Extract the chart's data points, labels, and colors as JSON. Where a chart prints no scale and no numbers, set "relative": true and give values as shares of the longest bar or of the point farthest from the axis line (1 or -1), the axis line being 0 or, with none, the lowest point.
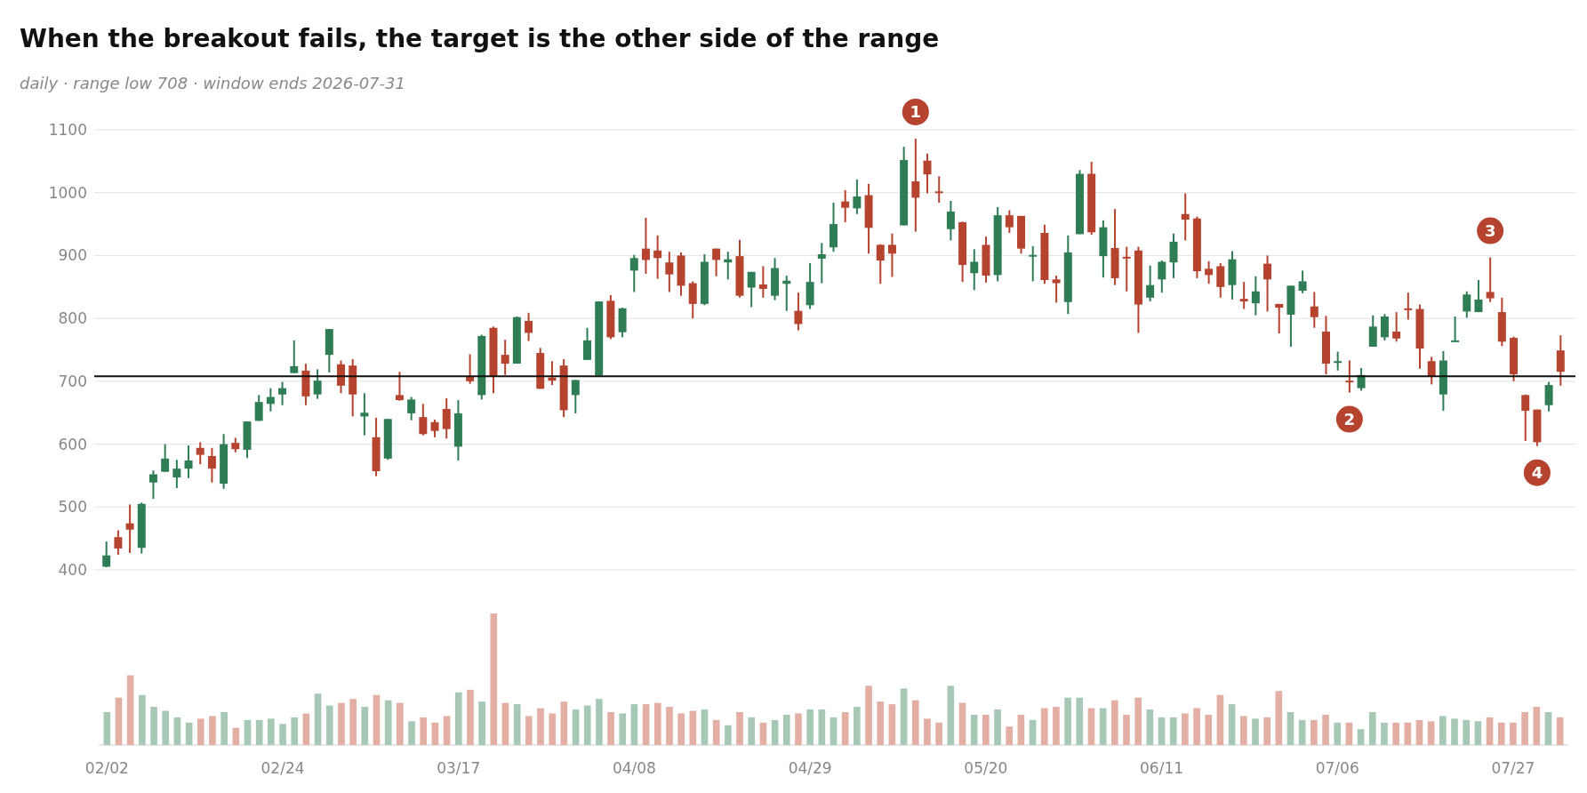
{
  "chart_data": [
    {
      "type": "candlestick",
      "title": "When the breakout fails, the target is the other side of the range",
      "subtitle": "daily · range low 708 · window ends 2026-07-31",
      "categories": [
        null,
        null,
        null,
        null,
        null,
        null,
        null,
        null,
        null,
        null,
        null,
        null,
        null,
        null,
        null,
        null,
        null,
        null,
        null,
        null,
        null,
        null,
        null,
        null,
        null,
        null,
        null,
        null,
        null,
        null,
        null,
        null,
        null,
        null,
        null,
        null,
        null,
        null,
        null,
        null,
        null,
        null,
        null,
        null,
        null,
        null,
        null,
        null,
        null,
        null,
        null,
        null,
        null,
        null,
        null,
        null,
        null,
        null,
        null,
        null,
        null,
        null,
        null,
        null,
        null,
        null,
        null,
        null,
        null,
        null,
        null,
        null,
        null,
        null,
        null,
        null,
        null,
        null,
        null,
        null,
        null,
        null,
        null,
        null,
        null,
        null,
        null,
        null,
        null,
        null,
        null,
        null,
        null,
        null,
        null,
        null,
        null,
        null,
        null,
        null,
        null,
        null,
        null,
        null,
        null,
        null,
        null,
        null,
        null,
        null,
        null,
        null,
        null,
        null,
        null,
        null,
        null,
        null,
        null,
        null,
        null,
        null,
        null,
        null,
        null
      ],
      "ohlc": [
        [
          405,
          445,
          404,
          423
        ],
        [
          452,
          463,
          424,
          434
        ],
        [
          474,
          504,
          427,
          464
        ],
        [
          435,
          507,
          426,
          505
        ],
        [
          539,
          558,
          513,
          552
        ],
        [
          556,
          600,
          556,
          577
        ],
        [
          547,
          575,
          530,
          561
        ],
        [
          561,
          598,
          546,
          574
        ],
        [
          594,
          603,
          568,
          583
        ],
        [
          581,
          594,
          539,
          561
        ],
        [
          537,
          616,
          529,
          600
        ],
        [
          602,
          610,
          587,
          592
        ],
        [
          591,
          636,
          578,
          636
        ],
        [
          637,
          678,
          637,
          667
        ],
        [
          664,
          689,
          652,
          675
        ],
        [
          679,
          699,
          662,
          689
        ],
        [
          713,
          765,
          713,
          724
        ],
        [
          717,
          728,
          662,
          676
        ],
        [
          679,
          719,
          672,
          701
        ],
        [
          742,
          783,
          714,
          783
        ],
        [
          727,
          733,
          681,
          693
        ],
        [
          725,
          735,
          644,
          679
        ],
        [
          644,
          681,
          614,
          650
        ],
        [
          611,
          642,
          549,
          557
        ],
        [
          577,
          640,
          575,
          640
        ],
        [
          678,
          715,
          669,
          670
        ],
        [
          649,
          675,
          638,
          671
        ],
        [
          643,
          664,
          614,
          616
        ],
        [
          635,
          639,
          611,
          621
        ],
        [
          656,
          673,
          609,
          624
        ],
        [
          596,
          670,
          574,
          649
        ],
        [
          707,
          743,
          696,
          700
        ],
        [
          678,
          774,
          671,
          772
        ],
        [
          785,
          787,
          681,
          707
        ],
        [
          742,
          766,
          710,
          728
        ],
        [
          728,
          803,
          728,
          802
        ],
        [
          796,
          809,
          764,
          777
        ],
        [
          745,
          753,
          688,
          688
        ],
        [
          706,
          732,
          694,
          701
        ],
        [
          725,
          735,
          643,
          654
        ],
        [
          678,
          702,
          649,
          702
        ],
        [
          734,
          785,
          734,
          765
        ],
        [
          709,
          827,
          709,
          827
        ],
        [
          828,
          837,
          767,
          770
        ],
        [
          778,
          817,
          770,
          816
        ],
        [
          876,
          901,
          842,
          896
        ],
        [
          911,
          960,
          871,
          893
        ],
        [
          908,
          932,
          863,
          896
        ],
        [
          889,
          906,
          842,
          870
        ],
        [
          900,
          905,
          836,
          852
        ],
        [
          856,
          859,
          800,
          823
        ],
        [
          823,
          902,
          821,
          890
        ],
        [
          911,
          911,
          867,
          893
        ],
        [
          889,
          906,
          862,
          894
        ],
        [
          899,
          925,
          833,
          836
        ],
        [
          849,
          874,
          818,
          874
        ],
        [
          854,
          883,
          833,
          847
        ],
        [
          836,
          896,
          829,
          880
        ],
        [
          855,
          868,
          812,
          860
        ],
        [
          812,
          841,
          781,
          791
        ],
        [
          821,
          888,
          815,
          858
        ],
        [
          895,
          920,
          856,
          902
        ],
        [
          913,
          984,
          906,
          950
        ],
        [
          986,
          1004,
          953,
          976
        ],
        [
          975,
          1021,
          966,
          994
        ],
        [
          996,
          1014,
          903,
          944
        ],
        [
          917,
          918,
          855,
          892
        ],
        [
          917,
          935,
          866,
          903
        ],
        [
          948,
          1073,
          948,
          1052
        ],
        [
          1018,
          1086,
          938,
          992
        ],
        [
          1051,
          1062,
          999,
          1029
        ],
        [
          1002,
          1026,
          984,
          1001
        ],
        [
          942,
          987,
          924,
          970
        ],
        [
          953,
          954,
          858,
          885
        ],
        [
          872,
          910,
          845,
          890
        ],
        [
          917,
          930,
          857,
          868
        ],
        [
          869,
          977,
          859,
          964
        ],
        [
          964,
          972,
          936,
          945
        ],
        [
          963,
          963,
          903,
          911
        ],
        [
          900,
          915,
          859,
          901
        ],
        [
          936,
          949,
          855,
          861
        ],
        [
          862,
          868,
          825,
          856
        ],
        [
          826,
          932,
          807,
          905
        ],
        [
          934,
          1036,
          934,
          1030
        ],
        [
          1030,
          1049,
          933,
          937
        ],
        [
          899,
          956,
          865,
          945
        ],
        [
          912,
          974,
          853,
          864
        ],
        [
          898,
          914,
          843,
          896
        ],
        [
          908,
          914,
          777,
          822
        ],
        [
          833,
          884,
          827,
          853
        ],
        [
          862,
          892,
          841,
          890
        ],
        [
          889,
          935,
          864,
          922
        ],
        [
          966,
          999,
          924,
          957
        ],
        [
          959,
          962,
          864,
          875
        ],
        [
          879,
          891,
          855,
          869
        ],
        [
          883,
          888,
          833,
          850
        ],
        [
          853,
          907,
          830,
          894
        ],
        [
          831,
          858,
          815,
          827
        ],
        [
          824,
          867,
          805,
          843
        ],
        [
          887,
          900,
          811,
          862
        ],
        [
          823,
          823,
          776,
          817
        ],
        [
          806,
          852,
          755,
          852
        ],
        [
          844,
          876,
          840,
          859
        ],
        [
          819,
          842,
          785,
          802
        ],
        [
          779,
          804,
          711,
          728
        ],
        [
          731,
          747,
          717,
          732
        ],
        [
          701,
          733,
          682,
          700
        ],
        [
          689,
          721,
          685,
          710
        ],
        [
          755,
          805,
          755,
          787
        ],
        [
          770,
          807,
          765,
          803
        ],
        [
          779,
          810,
          763,
          768
        ],
        [
          816,
          841,
          798,
          815
        ],
        [
          815,
          822,
          720,
          752
        ],
        [
          732,
          739,
          695,
          707
        ],
        [
          679,
          748,
          653,
          733
        ],
        [
          764,
          803,
          764,
          765
        ],
        [
          811,
          843,
          801,
          838
        ],
        [
          810,
          861,
          810,
          830
        ],
        [
          842,
          897,
          826,
          832
        ],
        [
          810,
          833,
          756,
          763
        ],
        [
          769,
          771,
          700,
          711
        ],
        [
          678,
          679,
          605,
          653
        ],
        [
          655,
          655,
          597,
          603
        ],
        [
          662,
          699,
          652,
          694
        ],
        [
          749,
          773,
          693,
          715
        ]
      ],
      "ylim": [
        400,
        1100
      ],
      "yticks": [
        400,
        500,
        600,
        700,
        800,
        900,
        1000,
        1100
      ],
      "grid": "y",
      "tick_labels": "y",
      "ref_lines": [
        {
          "axis": "y",
          "value": 708,
          "color": "#111111"
        }
      ],
      "annotations": [
        {
          "text": "1",
          "y": 1086
        },
        {
          "text": "2",
          "y": 682
        },
        {
          "text": "3",
          "y": 897
        },
        {
          "text": "4",
          "y": 597
        }
      ]
    },
    {
      "type": "bar",
      "relative": true,
      "tick_labels": "x",
      "categories": [
        "02/02",
        null,
        null,
        null,
        null,
        null,
        null,
        null,
        null,
        null,
        null,
        null,
        null,
        null,
        null,
        "02/24",
        null,
        null,
        null,
        null,
        null,
        null,
        null,
        null,
        null,
        null,
        null,
        null,
        null,
        null,
        "03/17",
        null,
        null,
        null,
        null,
        null,
        null,
        null,
        null,
        null,
        null,
        null,
        null,
        null,
        null,
        "04/08",
        null,
        null,
        null,
        null,
        null,
        null,
        null,
        null,
        null,
        null,
        null,
        null,
        null,
        null,
        "04/29",
        null,
        null,
        null,
        null,
        null,
        null,
        null,
        null,
        null,
        null,
        null,
        null,
        null,
        null,
        "05/20",
        null,
        null,
        null,
        null,
        null,
        null,
        null,
        null,
        null,
        null,
        null,
        null,
        null,
        null,
        "06/11",
        null,
        null,
        null,
        null,
        null,
        null,
        null,
        null,
        null,
        null,
        null,
        null,
        null,
        null,
        "07/06",
        null,
        null,
        null,
        null,
        null,
        null,
        null,
        null,
        null,
        null,
        null,
        null,
        null,
        null,
        "07/27",
        null,
        null,
        null,
        null
      ],
      "values": [
        0.25,
        0.36,
        0.53,
        0.38,
        0.29,
        0.26,
        0.21,
        0.17,
        0.2,
        0.22,
        0.25,
        0.13,
        0.19,
        0.19,
        0.2,
        0.16,
        0.21,
        0.24,
        0.39,
        0.3,
        0.32,
        0.35,
        0.29,
        0.38,
        0.34,
        0.32,
        0.18,
        0.21,
        0.17,
        0.22,
        0.4,
        0.42,
        0.33,
        1,
        0.32,
        0.31,
        0.22,
        0.28,
        0.24,
        0.33,
        0.27,
        0.3,
        0.35,
        0.25,
        0.24,
        0.31,
        0.31,
        0.32,
        0.29,
        0.24,
        0.26,
        0.27,
        0.19,
        0.15,
        0.25,
        0.21,
        0.17,
        0.19,
        0.23,
        0.24,
        0.27,
        0.27,
        0.21,
        0.25,
        0.29,
        0.45,
        0.33,
        0.31,
        0.43,
        0.34,
        0.2,
        0.17,
        0.45,
        0.32,
        0.23,
        0.23,
        0.27,
        0.14,
        0.23,
        0.19,
        0.28,
        0.29,
        0.36,
        0.36,
        0.28,
        0.28,
        0.34,
        0.23,
        0.36,
        0.27,
        0.21,
        0.21,
        0.24,
        0.28,
        0.23,
        0.38,
        0.31,
        0.22,
        0.2,
        0.21,
        0.41,
        0.25,
        0.19,
        0.19,
        0.23,
        0.17,
        0.17,
        0.12,
        0.25,
        0.17,
        0.17,
        0.17,
        0.19,
        0.18,
        0.22,
        0.2,
        0.19,
        0.18,
        0.21,
        0.17,
        0.17,
        0.25,
        0.29,
        0.25,
        0.21
      ],
      "colors": [
        "#a6c8b4",
        "#e3afa5",
        "#e3afa5",
        "#a6c8b4",
        "#a6c8b4",
        "#a6c8b4",
        "#a6c8b4",
        "#a6c8b4",
        "#e3afa5",
        "#e3afa5",
        "#a6c8b4",
        "#e3afa5",
        "#a6c8b4",
        "#a6c8b4",
        "#a6c8b4",
        "#a6c8b4",
        "#a6c8b4",
        "#e3afa5",
        "#a6c8b4",
        "#a6c8b4",
        "#e3afa5",
        "#e3afa5",
        "#a6c8b4",
        "#e3afa5",
        "#a6c8b4",
        "#e3afa5",
        "#a6c8b4",
        "#e3afa5",
        "#e3afa5",
        "#e3afa5",
        "#a6c8b4",
        "#e3afa5",
        "#a6c8b4",
        "#e3afa5",
        "#e3afa5",
        "#a6c8b4",
        "#e3afa5",
        "#e3afa5",
        "#e3afa5",
        "#e3afa5",
        "#a6c8b4",
        "#a6c8b4",
        "#a6c8b4",
        "#e3afa5",
        "#a6c8b4",
        "#a6c8b4",
        "#e3afa5",
        "#e3afa5",
        "#e3afa5",
        "#e3afa5",
        "#e3afa5",
        "#a6c8b4",
        "#e3afa5",
        "#a6c8b4",
        "#e3afa5",
        "#a6c8b4",
        "#e3afa5",
        "#a6c8b4",
        "#a6c8b4",
        "#e3afa5",
        "#a6c8b4",
        "#a6c8b4",
        "#a6c8b4",
        "#e3afa5",
        "#a6c8b4",
        "#e3afa5",
        "#e3afa5",
        "#e3afa5",
        "#a6c8b4",
        "#e3afa5",
        "#e3afa5",
        "#e3afa5",
        "#a6c8b4",
        "#e3afa5",
        "#a6c8b4",
        "#e3afa5",
        "#a6c8b4",
        "#e3afa5",
        "#e3afa5",
        "#a6c8b4",
        "#e3afa5",
        "#e3afa5",
        "#a6c8b4",
        "#a6c8b4",
        "#e3afa5",
        "#a6c8b4",
        "#e3afa5",
        "#e3afa5",
        "#e3afa5",
        "#a6c8b4",
        "#a6c8b4",
        "#a6c8b4",
        "#e3afa5",
        "#e3afa5",
        "#e3afa5",
        "#e3afa5",
        "#a6c8b4",
        "#e3afa5",
        "#a6c8b4",
        "#e3afa5",
        "#e3afa5",
        "#a6c8b4",
        "#a6c8b4",
        "#e3afa5",
        "#e3afa5",
        "#a6c8b4",
        "#e3afa5",
        "#a6c8b4",
        "#a6c8b4",
        "#a6c8b4",
        "#e3afa5",
        "#e3afa5",
        "#e3afa5",
        "#e3afa5",
        "#a6c8b4",
        "#a6c8b4",
        "#a6c8b4",
        "#a6c8b4",
        "#e3afa5",
        "#e3afa5",
        "#e3afa5",
        "#e3afa5",
        "#e3afa5",
        "#a6c8b4",
        "#e3afa5"
      ]
    }
  ]
}
